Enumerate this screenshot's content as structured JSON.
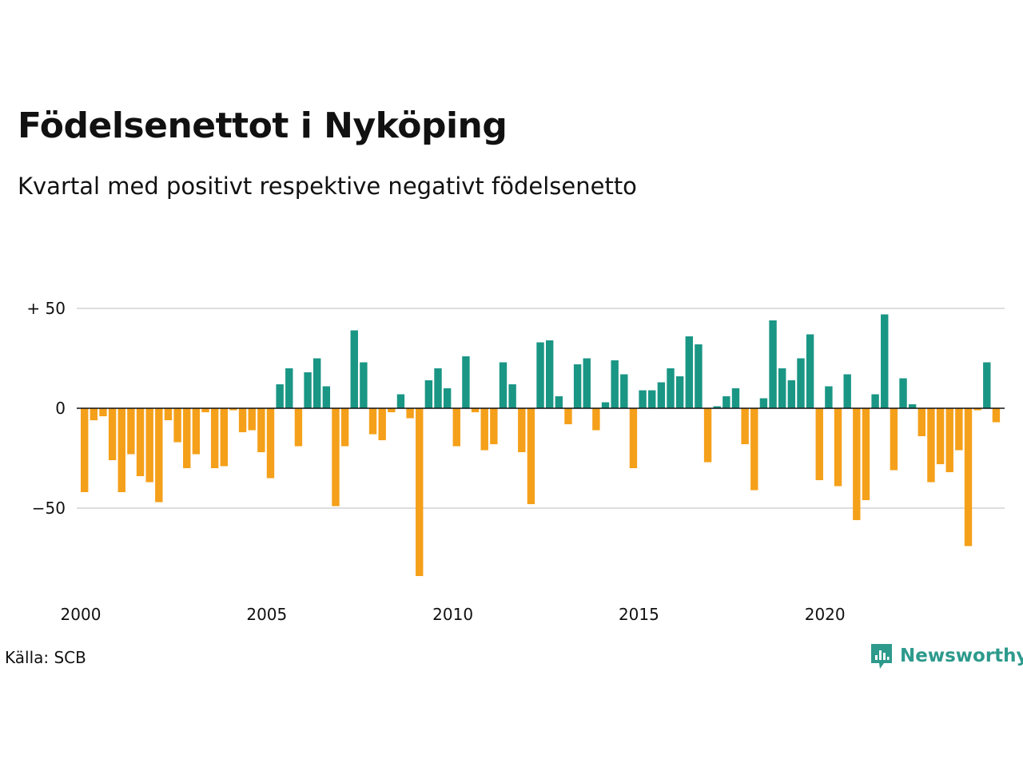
{
  "title": "Födelsenettot i Nyköping",
  "subtitle": "Kvartal med positivt respektive negativt födelsenetto",
  "source": "Källa: SCB",
  "brand": "Newsworthy",
  "colors": {
    "positive": "#1a9685",
    "negative": "#f5a01a",
    "grid": "#dddddd",
    "zero": "#111111"
  },
  "chart_data": {
    "type": "bar",
    "title": "Födelsenettot i Nyköping",
    "subtitle": "Kvartal med positivt respektive negativt födelsenetto",
    "xlabel": "",
    "ylabel": "",
    "ylim": [
      -90,
      60
    ],
    "y_ticks": [
      {
        "value": 50,
        "label": "+ 50"
      },
      {
        "value": 0,
        "label": "0"
      },
      {
        "value": -50,
        "label": "−50"
      }
    ],
    "x_ticks": [
      {
        "year": 2000,
        "label": "2000"
      },
      {
        "year": 2005,
        "label": "2005"
      },
      {
        "year": 2010,
        "label": "2010"
      },
      {
        "year": 2015,
        "label": "2015"
      },
      {
        "year": 2020,
        "label": "2020"
      }
    ],
    "start_year": 2000,
    "grid": true,
    "legend": "none",
    "values": [
      -42,
      -6,
      -4,
      -26,
      -42,
      -23,
      -34,
      -37,
      -47,
      -6,
      -17,
      -30,
      -23,
      -2,
      -30,
      -29,
      -1,
      -12,
      -11,
      -22,
      -35,
      12,
      20,
      -19,
      18,
      25,
      11,
      -49,
      -19,
      39,
      23,
      -13,
      -16,
      -2,
      7,
      -5,
      -84,
      14,
      20,
      10,
      -19,
      26,
      -2,
      -21,
      -18,
      23,
      12,
      -22,
      -48,
      33,
      34,
      6,
      -8,
      22,
      25,
      -11,
      3,
      24,
      17,
      -30,
      9,
      9,
      13,
      20,
      16,
      36,
      32,
      -27,
      1,
      6,
      10,
      -18,
      -41,
      5,
      44,
      20,
      14,
      25,
      37,
      -36,
      11,
      -39,
      17,
      -56,
      -46,
      7,
      47,
      -31,
      15,
      2,
      -14,
      -37,
      -28,
      -32,
      -21,
      -69,
      -1,
      23,
      -7
    ]
  }
}
